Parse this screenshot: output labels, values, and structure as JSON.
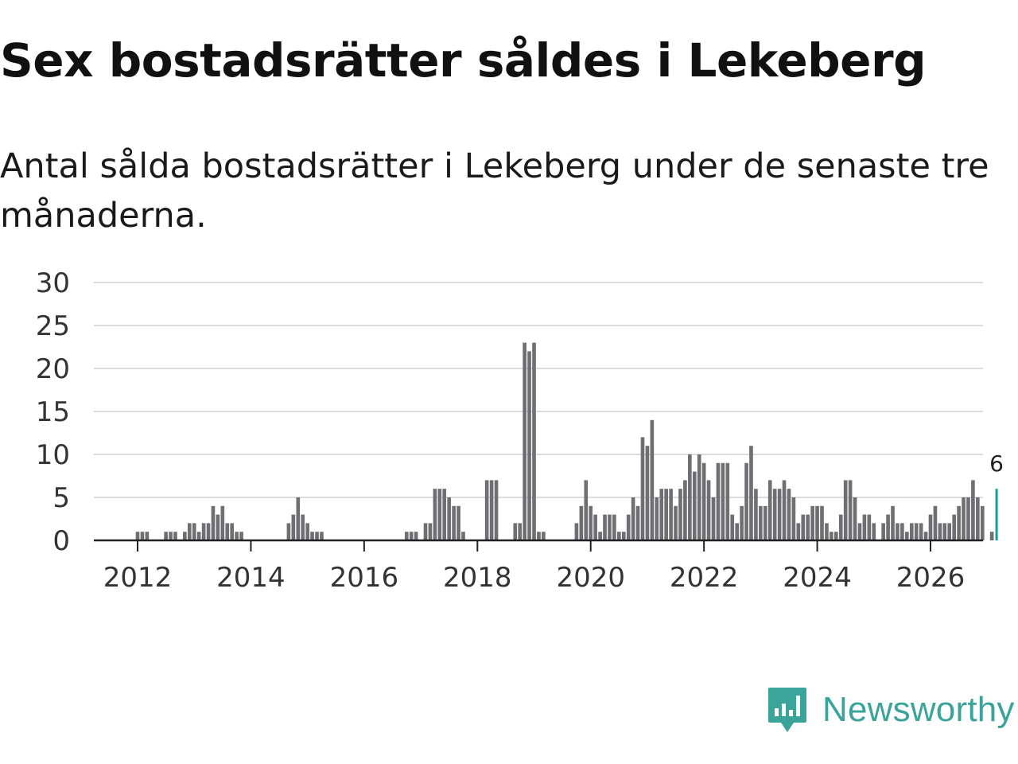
{
  "title": "Sex bostadsrätter såldes i Lekeberg",
  "subtitle": "Antal sålda bostadsrätter i Lekeberg under de senaste tre månaderna.",
  "brand": {
    "name": "Newsworthy",
    "color": "#3aa39a",
    "icon": "newsworthy-logo-icon"
  },
  "colors": {
    "bar": "#6e6e73",
    "highlight": "#1a9e8f",
    "grid": "#dcdcdc",
    "axis": "#222222"
  },
  "chart_data": {
    "type": "bar",
    "title": "Antal sålda bostadsrätter i Lekeberg",
    "xlabel": "",
    "ylabel": "",
    "ylim": [
      0,
      30
    ],
    "yticks": [
      "0",
      "5",
      "10",
      "15",
      "20",
      "25",
      "30"
    ],
    "xticks": [
      "2012",
      "2014",
      "2016",
      "2018",
      "2020",
      "2022",
      "2024",
      "2026"
    ],
    "start": "2011-01",
    "highlight_label": "6",
    "values": [
      0,
      0,
      0,
      0,
      0,
      0,
      0,
      0,
      0,
      0,
      0,
      0,
      1,
      1,
      1,
      0,
      0,
      0,
      1,
      1,
      1,
      0,
      1,
      2,
      2,
      1,
      2,
      2,
      4,
      3,
      4,
      2,
      2,
      1,
      1,
      0,
      0,
      0,
      0,
      0,
      0,
      0,
      0,
      0,
      2,
      3,
      5,
      3,
      2,
      1,
      1,
      1,
      0,
      0,
      0,
      0,
      0,
      0,
      0,
      0,
      0,
      0,
      0,
      0,
      0,
      0,
      0,
      0,
      0,
      1,
      1,
      1,
      0,
      2,
      2,
      6,
      6,
      6,
      5,
      4,
      4,
      1,
      0,
      0,
      0,
      0,
      7,
      7,
      7,
      0,
      0,
      0,
      2,
      2,
      23,
      22,
      23,
      1,
      1,
      0,
      0,
      0,
      0,
      0,
      0,
      2,
      4,
      7,
      4,
      3,
      1,
      3,
      3,
      3,
      1,
      1,
      3,
      5,
      4,
      12,
      11,
      14,
      5,
      6,
      6,
      6,
      4,
      6,
      7,
      10,
      8,
      10,
      9,
      7,
      5,
      9,
      9,
      9,
      3,
      2,
      4,
      9,
      11,
      6,
      4,
      4,
      7,
      6,
      6,
      7,
      6,
      5,
      2,
      3,
      3,
      4,
      4,
      4,
      2,
      1,
      1,
      3,
      7,
      7,
      5,
      2,
      3,
      3,
      2,
      0,
      2,
      3,
      4,
      2,
      2,
      1,
      2,
      2,
      2,
      1,
      3,
      4,
      2,
      2,
      2,
      3,
      4,
      5,
      5,
      7,
      5,
      4,
      0,
      1,
      6
    ]
  }
}
